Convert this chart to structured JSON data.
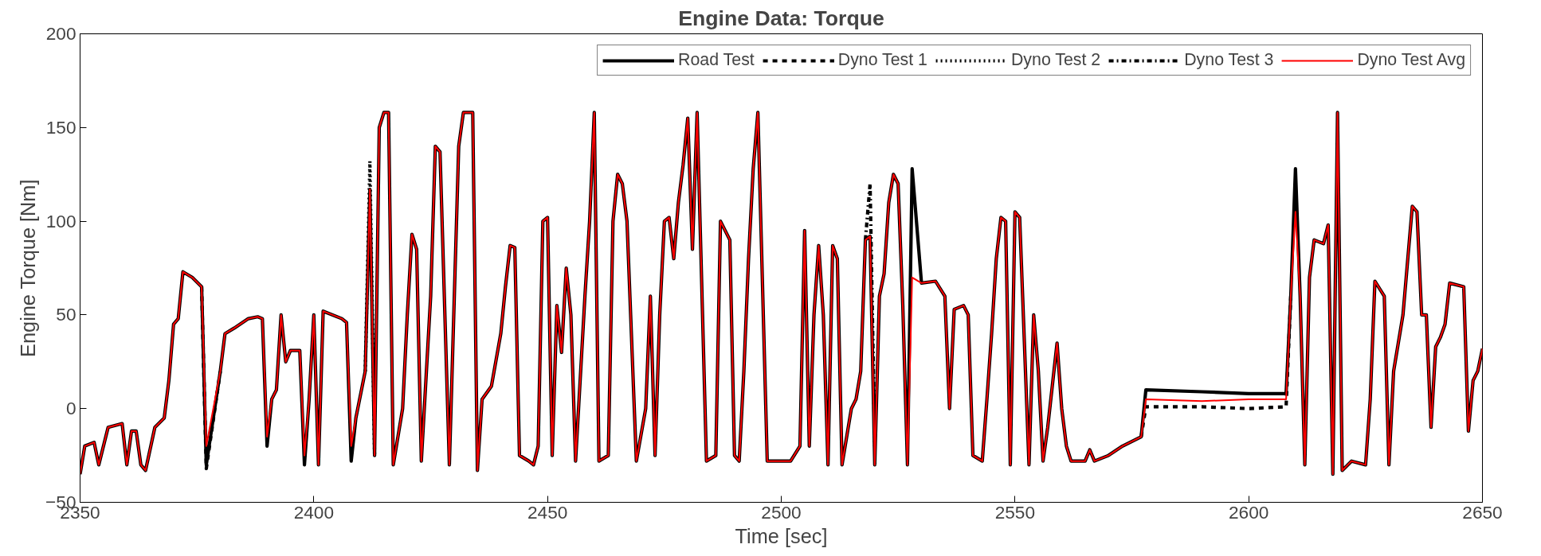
{
  "chart_data": {
    "type": "line",
    "title": "Engine Data: Torque",
    "xlabel": "Time [sec]",
    "ylabel": "Engine Torque [Nm]",
    "xlim": [
      2350,
      2650
    ],
    "ylim": [
      -50,
      200
    ],
    "xticks": [
      2350,
      2400,
      2450,
      2500,
      2550,
      2600,
      2650
    ],
    "yticks": [
      -50,
      0,
      50,
      100,
      150,
      200
    ],
    "legend": "top right",
    "x": [
      2350,
      2351,
      2353,
      2354,
      2356,
      2359,
      2360,
      2361,
      2362,
      2363,
      2364,
      2366,
      2368,
      2369,
      2370,
      2371,
      2372,
      2374,
      2376,
      2377,
      2380,
      2381,
      2383,
      2386,
      2388,
      2389,
      2390,
      2391,
      2392,
      2393,
      2394,
      2395,
      2397,
      2398,
      2399,
      2400,
      2401,
      2402,
      2406,
      2407,
      2408,
      2409,
      2411,
      2412,
      2413,
      2414,
      2415,
      2416,
      2417,
      2419,
      2420,
      2421,
      2422,
      2423,
      2425,
      2426,
      2427,
      2429,
      2431,
      2432,
      2434,
      2435,
      2436,
      2438,
      2440,
      2441,
      2442,
      2443,
      2444,
      2446,
      2447,
      2448,
      2449,
      2450,
      2451,
      2452,
      2453,
      2454,
      2455,
      2456,
      2458,
      2459,
      2460,
      2461,
      2463,
      2464,
      2465,
      2466,
      2467,
      2469,
      2471,
      2472,
      2473,
      2474,
      2475,
      2476,
      2477,
      2478,
      2479,
      2480,
      2481,
      2482,
      2484,
      2486,
      2487,
      2489,
      2490,
      2491,
      2492,
      2493,
      2494,
      2495,
      2497,
      2502,
      2504,
      2505,
      2506,
      2507,
      2508,
      2509,
      2510,
      2511,
      2512,
      2513,
      2515,
      2516,
      2517,
      2518,
      2519,
      2520,
      2521,
      2522,
      2523,
      2524,
      2525,
      2526,
      2527,
      2528,
      2530,
      2533,
      2535,
      2536,
      2537,
      2539,
      2540,
      2541,
      2543,
      2544,
      2545,
      2546,
      2547,
      2548,
      2549,
      2550,
      2551,
      2553,
      2554,
      2555,
      2556,
      2557,
      2559,
      2560,
      2561,
      2562,
      2565,
      2566,
      2567,
      2570,
      2573,
      2577,
      2578,
      2590,
      2600,
      2608,
      2609,
      2610,
      2611,
      2612,
      2613,
      2614,
      2616,
      2617,
      2618,
      2619,
      2620,
      2622,
      2625,
      2626,
      2627,
      2629,
      2630,
      2631,
      2633,
      2635,
      2636,
      2637,
      2638,
      2639,
      2640,
      2641,
      2642,
      2643,
      2646,
      2647,
      2648,
      2649,
      2650
    ],
    "series": [
      {
        "name": "Road Test",
        "color": "#000000",
        "line_style": "solid",
        "values": [
          -35,
          -20,
          -18,
          -30,
          -10,
          -8,
          -30,
          -12,
          -12,
          -30,
          -33,
          -10,
          -5,
          15,
          45,
          48,
          73,
          70,
          65,
          -30,
          20,
          40,
          43,
          48,
          49,
          48,
          -20,
          5,
          10,
          50,
          25,
          31,
          31,
          -30,
          5,
          50,
          -30,
          52,
          48,
          46,
          -28,
          -5,
          20,
          117,
          -25,
          150,
          158,
          158,
          -30,
          0,
          50,
          93,
          85,
          -28,
          60,
          140,
          137,
          -30,
          140,
          158,
          158,
          -33,
          5,
          12,
          40,
          65,
          87,
          86,
          -25,
          -28,
          -30,
          -20,
          100,
          102,
          -25,
          55,
          30,
          75,
          50,
          -28,
          60,
          100,
          158,
          -28,
          -25,
          100,
          125,
          120,
          100,
          -28,
          0,
          60,
          -25,
          50,
          100,
          102,
          80,
          110,
          130,
          155,
          85,
          158,
          -28,
          -25,
          100,
          90,
          -25,
          -28,
          20,
          80,
          128,
          158,
          -28,
          -28,
          -20,
          95,
          -20,
          50,
          87,
          50,
          -30,
          87,
          80,
          -30,
          0,
          5,
          20,
          90,
          92,
          -30,
          60,
          72,
          110,
          125,
          120,
          55,
          -30,
          128,
          67,
          68,
          60,
          0,
          53,
          55,
          50,
          -25,
          -28,
          5,
          40,
          80,
          102,
          100,
          -30,
          105,
          102,
          -30,
          50,
          20,
          -28,
          -10,
          35,
          0,
          -20,
          -28,
          -28,
          -22,
          -28,
          -25,
          -20,
          -15,
          10,
          9,
          8,
          8,
          60,
          128,
          60,
          -30,
          70,
          90,
          88,
          98,
          -35,
          158,
          -33,
          -28,
          -30,
          5,
          68,
          60,
          -30,
          20,
          50,
          108,
          105,
          50,
          50,
          -10,
          33,
          38,
          45,
          67,
          65,
          -12,
          15,
          20,
          32
        ]
      },
      {
        "name": "Dyno Test 1",
        "color": "#000000",
        "line_style": "dashed",
        "x": [
          2376,
          2377,
          2380,
          2500,
          2577,
          2578,
          2590,
          2600,
          2608,
          2609
        ],
        "values": [
          65,
          -32,
          20,
          null,
          -15,
          1,
          1,
          0,
          1,
          60
        ]
      },
      {
        "name": "Dyno Test 2",
        "color": "#000000",
        "line_style": "dotted",
        "x": [
          2411,
          2412,
          2413
        ],
        "values": [
          20,
          132,
          -25
        ]
      },
      {
        "name": "Dyno Test 3",
        "color": "#000000",
        "line_style": "dashdot",
        "x": [
          2518,
          2519,
          2520
        ],
        "values": [
          90,
          120,
          -20
        ]
      },
      {
        "name": "Dyno Test Avg",
        "color": "#ff0000",
        "line_style": "solid",
        "values": [
          -35,
          -20,
          -18,
          -30,
          -10,
          -8,
          -30,
          -12,
          -12,
          -30,
          -33,
          -10,
          -5,
          15,
          45,
          48,
          73,
          70,
          65,
          -20,
          20,
          40,
          43,
          48,
          49,
          48,
          -15,
          5,
          10,
          50,
          25,
          31,
          31,
          -25,
          5,
          50,
          -30,
          52,
          48,
          46,
          -20,
          -5,
          20,
          117,
          -25,
          150,
          158,
          158,
          -30,
          0,
          50,
          93,
          85,
          -28,
          60,
          140,
          137,
          -30,
          140,
          158,
          158,
          -33,
          5,
          12,
          40,
          65,
          87,
          86,
          -25,
          -28,
          -30,
          -20,
          100,
          102,
          -25,
          55,
          30,
          75,
          50,
          -28,
          60,
          100,
          158,
          -28,
          -25,
          100,
          125,
          120,
          100,
          -28,
          0,
          60,
          -25,
          50,
          100,
          102,
          80,
          110,
          130,
          155,
          85,
          158,
          -28,
          -25,
          100,
          90,
          -25,
          -28,
          20,
          80,
          128,
          158,
          -28,
          -28,
          -20,
          95,
          -20,
          50,
          87,
          50,
          -30,
          87,
          80,
          -30,
          0,
          5,
          20,
          90,
          92,
          -30,
          60,
          72,
          110,
          125,
          120,
          55,
          -30,
          70,
          67,
          68,
          60,
          0,
          53,
          55,
          50,
          -25,
          -28,
          5,
          40,
          80,
          102,
          100,
          -30,
          105,
          102,
          -30,
          50,
          20,
          -28,
          -10,
          35,
          0,
          -20,
          -28,
          -28,
          -22,
          -28,
          -25,
          -20,
          -15,
          5,
          4,
          5,
          5,
          60,
          105,
          60,
          -30,
          70,
          90,
          88,
          98,
          -35,
          158,
          -33,
          -28,
          -30,
          5,
          68,
          60,
          -30,
          20,
          50,
          108,
          105,
          50,
          50,
          -10,
          33,
          38,
          45,
          67,
          65,
          -12,
          15,
          20,
          32
        ]
      }
    ]
  }
}
